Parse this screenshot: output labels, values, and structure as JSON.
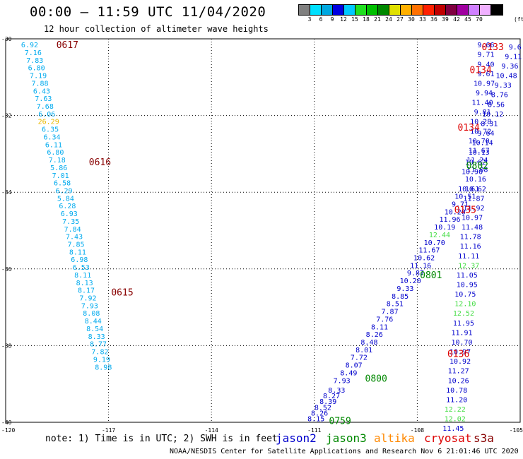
{
  "header": {
    "title": "00:00 – 11:59 UTC 11/04/2020",
    "subtitle": "12 hour collection of altimeter wave heights",
    "credit": "NOAA/NESDIS Center for Satellite Applications and Research   Nov  6 21:01:46 UTC 2020"
  },
  "colorbar": {
    "colors": [
      "#808080",
      "#00e0ff",
      "#00a8e0",
      "#0000e0",
      "#00c8ff",
      "#20e020",
      "#00c000",
      "#008800",
      "#e0e000",
      "#ffb000",
      "#ff7000",
      "#ff2000",
      "#c00000",
      "#800040",
      "#a000a0",
      "#d080ff",
      "#f0b0ff",
      "#000000"
    ],
    "labels": [
      "3",
      "6",
      "9",
      "12",
      "15",
      "18",
      "21",
      "24",
      "27",
      "30",
      "33",
      "36",
      "39",
      "42",
      "45",
      "70"
    ],
    "unit": "(ft)"
  },
  "chart_data": {
    "type": "scatter",
    "title": "00:00 – 11:59 UTC 11/04/2020",
    "subtitle": "12 hour collection of altimeter wave heights",
    "xlim": [
      -120,
      -105
    ],
    "ylim": [
      -40,
      -30
    ],
    "x_ticks": [
      "-120",
      "-117",
      "-114",
      "-111",
      "-108",
      "-105"
    ],
    "y_ticks": [
      "-30",
      "-32",
      "-34",
      "-36",
      "-38",
      "-40"
    ],
    "grid": "dotted",
    "note": "note: 1) Time is in UTC; 2) SWH is in feet",
    "satellites": [
      {
        "name": "jason2",
        "color": "#0000cc"
      },
      {
        "name": "jason3",
        "color": "#008800"
      },
      {
        "name": "altika",
        "color": "#ff8800"
      },
      {
        "name": "cryosat",
        "color": "#dd0000"
      },
      {
        "name": "s3a",
        "color": "#880000"
      }
    ],
    "time_labels": [
      {
        "text": "0617",
        "lon": -118.2,
        "lat": -30.15,
        "color": "#880000"
      },
      {
        "text": "0616",
        "lon": -117.25,
        "lat": -33.2,
        "color": "#880000"
      },
      {
        "text": "0615",
        "lon": -116.6,
        "lat": -36.6,
        "color": "#880000"
      },
      {
        "text": "0802",
        "lon": -106.25,
        "lat": -33.3,
        "color": "#008800"
      },
      {
        "text": "0801",
        "lon": -107.6,
        "lat": -36.15,
        "color": "#008800"
      },
      {
        "text": "0800",
        "lon": -109.2,
        "lat": -38.85,
        "color": "#008800"
      },
      {
        "text": "0759",
        "lon": -110.25,
        "lat": -39.95,
        "color": "#008800"
      },
      {
        "text": "0133",
        "lon": -105.8,
        "lat": -30.2,
        "color": "#dd0000"
      },
      {
        "text": "0134",
        "lon": -106.15,
        "lat": -30.8,
        "color": "#dd0000"
      },
      {
        "text": "0134",
        "lon": -106.5,
        "lat": -32.3,
        "color": "#dd0000"
      },
      {
        "text": "0135",
        "lon": -106.6,
        "lat": -34.45,
        "color": "#dd0000"
      },
      {
        "text": "0136",
        "lon": -106.8,
        "lat": -38.2,
        "color": "#dd0000"
      }
    ],
    "series": [
      {
        "name": "s3a",
        "color": "#00aaee",
        "points": [
          [
            -119.3,
            -30.15,
            "6.92"
          ],
          [
            -119.2,
            -30.35,
            "7.16"
          ],
          [
            -119.15,
            -30.55,
            "7.83"
          ],
          [
            -119.1,
            -30.75,
            "6.80"
          ],
          [
            -119.05,
            -30.95,
            "7.19"
          ],
          [
            -119.0,
            -31.15,
            "7.88"
          ],
          [
            -118.95,
            -31.35,
            "6.43"
          ],
          [
            -118.9,
            -31.55,
            "7.63"
          ],
          [
            -118.85,
            -31.75,
            "7.68"
          ],
          [
            -118.8,
            -31.95,
            "6.06"
          ],
          [
            -118.75,
            -32.15,
            "26.29"
          ],
          [
            -118.7,
            -32.35,
            "6.35"
          ],
          [
            -118.65,
            -32.55,
            "6.34"
          ],
          [
            -118.6,
            -32.75,
            "6.11"
          ],
          [
            -118.55,
            -32.95,
            "6.80"
          ],
          [
            -118.5,
            -33.15,
            "7.18"
          ],
          [
            -118.45,
            -33.35,
            "5.86"
          ],
          [
            -118.4,
            -33.55,
            "7.01"
          ],
          [
            -118.35,
            -33.75,
            "6.58"
          ],
          [
            -118.3,
            -33.95,
            "6.29"
          ],
          [
            -118.25,
            -34.15,
            "5.84"
          ],
          [
            -118.2,
            -34.35,
            "6.28"
          ],
          [
            -118.15,
            -34.55,
            "6.93"
          ],
          [
            -118.1,
            -34.75,
            "7.35"
          ],
          [
            -118.05,
            -34.95,
            "7.84"
          ],
          [
            -118.0,
            -35.15,
            "7.43"
          ],
          [
            -117.95,
            -35.35,
            "7.85"
          ],
          [
            -117.9,
            -35.55,
            "8.11"
          ],
          [
            -117.85,
            -35.75,
            "6.98"
          ],
          [
            -117.8,
            -35.95,
            "6.53"
          ],
          [
            -117.75,
            -36.15,
            "8.11"
          ],
          [
            -117.7,
            -36.35,
            "8.13"
          ],
          [
            -117.65,
            -36.55,
            "8.17"
          ],
          [
            -117.6,
            -36.75,
            "7.92"
          ],
          [
            -117.55,
            -36.95,
            "7.93"
          ],
          [
            -117.5,
            -37.15,
            "8.08"
          ],
          [
            -117.45,
            -37.35,
            "8.44"
          ],
          [
            -117.4,
            -37.55,
            "8.54"
          ],
          [
            -117.35,
            -37.75,
            "8.33"
          ],
          [
            -117.3,
            -37.95,
            "8.77"
          ],
          [
            -117.25,
            -38.15,
            "7.82"
          ],
          [
            -117.2,
            -38.35,
            "9.19"
          ],
          [
            -117.15,
            -38.55,
            "8.98"
          ]
        ]
      },
      {
        "name": "jason3",
        "color": "#0000cc",
        "points": [
          [
            -110.95,
            -39.9,
            "8.15"
          ],
          [
            -110.85,
            -39.75,
            "8.26"
          ],
          [
            -110.75,
            -39.6,
            "8.52"
          ],
          [
            -110.6,
            -39.45,
            "8.39"
          ],
          [
            -110.5,
            -39.3,
            "8.27"
          ],
          [
            -110.35,
            -39.15,
            "8.33"
          ],
          [
            -110.2,
            -38.9,
            "7.93"
          ],
          [
            -110.0,
            -38.7,
            "8.49"
          ],
          [
            -109.85,
            -38.5,
            "8.07"
          ],
          [
            -109.7,
            -38.3,
            "7.72"
          ],
          [
            -109.55,
            -38.1,
            "8.01"
          ],
          [
            -109.4,
            -37.9,
            "8.48"
          ],
          [
            -109.25,
            -37.7,
            "8.26"
          ],
          [
            -109.1,
            -37.5,
            "8.11"
          ],
          [
            -108.95,
            -37.3,
            "7.76"
          ],
          [
            -108.8,
            -37.1,
            "7.87"
          ],
          [
            -108.65,
            -36.9,
            "8.51"
          ],
          [
            -108.5,
            -36.7,
            "8.85"
          ],
          [
            -108.35,
            -36.5,
            "9.33"
          ],
          [
            -108.2,
            -36.3,
            "10.20"
          ],
          [
            -108.05,
            -36.1,
            "9.87"
          ],
          [
            -107.9,
            -35.9,
            "11.16"
          ],
          [
            -107.8,
            -35.7,
            "10.62"
          ],
          [
            -107.65,
            -35.5,
            "11.67"
          ],
          [
            -107.5,
            -35.3,
            "10.70"
          ],
          [
            -107.35,
            -35.1,
            "12.44"
          ],
          [
            -107.2,
            -34.9,
            "10.19"
          ],
          [
            -107.05,
            -34.7,
            "11.96"
          ],
          [
            -106.9,
            -34.5,
            "10.20"
          ],
          [
            -106.75,
            -34.3,
            "9.71"
          ],
          [
            -106.6,
            -34.1,
            "10.51"
          ],
          [
            -106.5,
            -33.9,
            "10.61"
          ]
        ]
      },
      {
        "name": "cryosat",
        "color": "#0000cc",
        "points": [
          [
            -106.0,
            -30.15,
            "9.66"
          ],
          [
            -106.0,
            -30.4,
            "9.71"
          ],
          [
            -106.0,
            -30.65,
            "9.40"
          ],
          [
            -106.0,
            -30.9,
            "9.61"
          ],
          [
            -106.05,
            -31.15,
            "10.97"
          ],
          [
            -106.05,
            -31.4,
            "9.94"
          ],
          [
            -106.1,
            -31.65,
            "11.40"
          ],
          [
            -106.1,
            -31.9,
            "9.81"
          ],
          [
            -106.15,
            -32.15,
            "10.28"
          ],
          [
            -106.15,
            -32.4,
            "10.72"
          ],
          [
            -106.2,
            -32.65,
            "10.70"
          ],
          [
            -106.2,
            -32.9,
            "11.67"
          ],
          [
            -106.25,
            -33.15,
            "11.24"
          ],
          [
            -106.25,
            -33.4,
            "11.08"
          ],
          [
            -106.3,
            -33.65,
            "10.16"
          ],
          [
            -106.3,
            -33.9,
            "10.62"
          ],
          [
            -106.35,
            -34.15,
            "11.87"
          ],
          [
            -106.35,
            -34.4,
            "11.92"
          ],
          [
            -106.4,
            -34.65,
            "10.97"
          ],
          [
            -106.4,
            -34.9,
            "11.48"
          ],
          [
            -106.45,
            -35.15,
            "11.78"
          ],
          [
            -106.45,
            -35.4,
            "11.16"
          ],
          [
            -106.5,
            -35.65,
            "11.11"
          ],
          [
            -106.5,
            -35.9,
            "12.37"
          ],
          [
            -106.55,
            -36.15,
            "11.05"
          ],
          [
            -106.55,
            -36.4,
            "10.95"
          ],
          [
            -106.6,
            -36.65,
            "10.75"
          ],
          [
            -106.6,
            -36.9,
            "12.10"
          ],
          [
            -106.65,
            -37.15,
            "12.52"
          ],
          [
            -106.65,
            -37.4,
            "11.95"
          ],
          [
            -106.7,
            -37.65,
            "11.91"
          ],
          [
            -106.7,
            -37.9,
            "10.70"
          ],
          [
            -106.75,
            -38.15,
            "10.97"
          ],
          [
            -106.75,
            -38.4,
            "10.92"
          ],
          [
            -106.8,
            -38.65,
            "11.27"
          ],
          [
            -106.8,
            -38.9,
            "10.26"
          ],
          [
            -106.85,
            -39.15,
            "10.78"
          ],
          [
            -106.85,
            -39.4,
            "11.20"
          ],
          [
            -106.9,
            -39.65,
            "12.22"
          ],
          [
            -106.9,
            -39.9,
            "12.02"
          ],
          [
            -106.95,
            -40.15,
            "11.45"
          ]
        ]
      },
      {
        "name": "cryosat-2",
        "color": "#0000cc",
        "points": [
          [
            -105.15,
            -30.2,
            "9.6"
          ],
          [
            -105.2,
            -30.45,
            "9.11"
          ],
          [
            -105.3,
            -30.7,
            "9.36"
          ],
          [
            -105.4,
            -30.95,
            "10.48"
          ],
          [
            -105.5,
            -31.2,
            "9.33"
          ],
          [
            -105.6,
            -31.45,
            "8.76"
          ],
          [
            -105.7,
            -31.7,
            "8.56"
          ],
          [
            -105.8,
            -31.95,
            "10.12"
          ],
          [
            -105.9,
            -32.2,
            "8.31"
          ],
          [
            -106.0,
            -32.45,
            "9.64"
          ],
          [
            -106.1,
            -32.7,
            "10.14"
          ],
          [
            -106.2,
            -32.95,
            "10.13"
          ],
          [
            -106.3,
            -33.2,
            "10.62"
          ],
          [
            -106.4,
            -33.45,
            "10.90"
          ]
        ]
      }
    ]
  },
  "legend_items": [
    {
      "label": "jason2",
      "color": "#0000cc"
    },
    {
      "label": "jason3",
      "color": "#008800"
    },
    {
      "label": "altika",
      "color": "#ff8800"
    },
    {
      "label": "cryosat",
      "color": "#dd0000"
    },
    {
      "label": "s3a",
      "color": "#880000"
    }
  ]
}
